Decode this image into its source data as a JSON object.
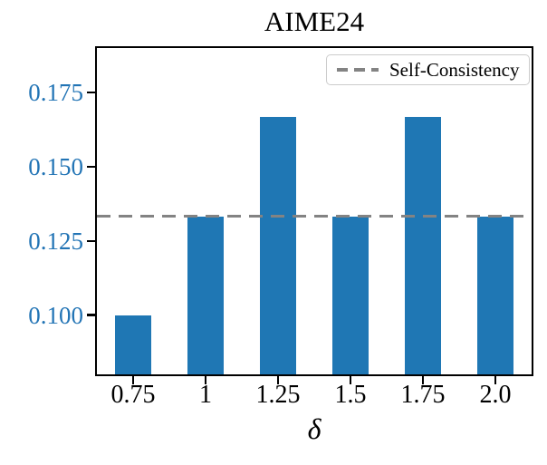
{
  "chart_data": {
    "type": "bar",
    "title": "AIME24",
    "xlabel": "δ",
    "ylabel": "",
    "categories": [
      "0.75",
      "1",
      "1.25",
      "1.5",
      "1.75",
      "2.0"
    ],
    "values": [
      0.1,
      0.1333,
      0.1667,
      0.1333,
      0.1667,
      0.1333
    ],
    "ylim": [
      0.08,
      0.19
    ],
    "yticks": {
      "values": [
        0.1,
        0.125,
        0.15,
        0.175
      ],
      "labels": [
        "0.100",
        "0.125",
        "0.150",
        "0.175"
      ],
      "color": "#2274b5"
    },
    "bar_color": "#1f77b4",
    "grid": false,
    "reference_line": {
      "value": 0.1333,
      "style": "dashed",
      "color": "#838383",
      "label": "Self-Consistency"
    },
    "legend": {
      "position": "upper right",
      "entries": [
        {
          "label": "Self-Consistency",
          "line_color": "#838383",
          "line_style": "dashed"
        }
      ]
    }
  }
}
